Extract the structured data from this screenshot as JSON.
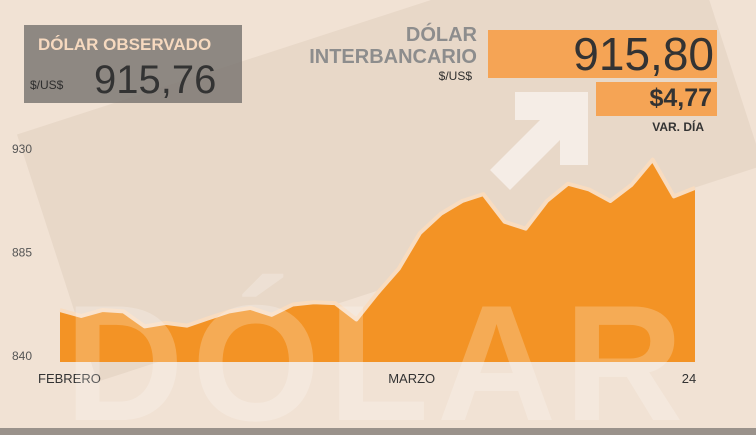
{
  "observado": {
    "title": "DÓLAR OBSERVADO",
    "unit": "$/US$",
    "value": "915,76"
  },
  "interbancario": {
    "title_line1": "DÓLAR",
    "title_line2": "INTERBANCARIO",
    "unit": "$/US$",
    "value": "915,80",
    "change": "$4,77",
    "change_label": "VAR. DÍA"
  },
  "watermark": "DÓLAR",
  "chart_data": {
    "type": "area",
    "color": "#f39325",
    "line_color": "#f8dcc0",
    "categories": [
      "FEBRERO",
      null,
      null,
      null,
      null,
      null,
      null,
      null,
      null,
      null,
      null,
      null,
      null,
      null,
      null,
      null,
      "MARZO",
      null,
      null,
      null,
      null,
      null,
      null,
      null,
      null,
      null,
      null,
      null,
      null,
      null,
      "24"
    ],
    "values": [
      862.6,
      860,
      862.6,
      862,
      855.5,
      857,
      855.8,
      859,
      862,
      863.5,
      860.5,
      865,
      866,
      865.6,
      858.5,
      870,
      880.5,
      896,
      904.5,
      910,
      913,
      901,
      898,
      910,
      917.5,
      915,
      910,
      917,
      928,
      912,
      915.7
    ],
    "ylim": [
      840,
      930
    ],
    "yticks": [
      840,
      885,
      930
    ]
  }
}
